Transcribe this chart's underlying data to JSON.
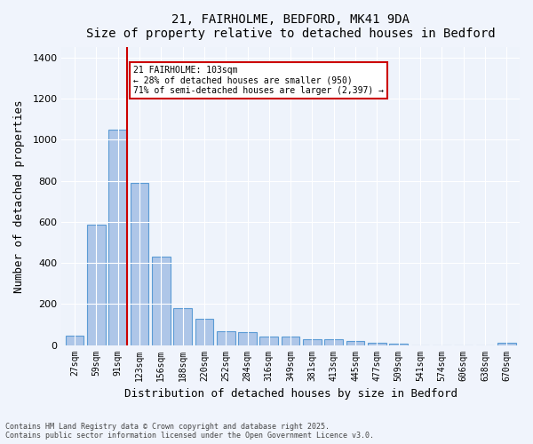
{
  "title": "21, FAIRHOLME, BEDFORD, MK41 9DA",
  "subtitle": "Size of property relative to detached houses in Bedford",
  "xlabel": "Distribution of detached houses by size in Bedford",
  "ylabel": "Number of detached properties",
  "categories": [
    "27sqm",
    "59sqm",
    "91sqm",
    "123sqm",
    "156sqm",
    "188sqm",
    "220sqm",
    "252sqm",
    "284sqm",
    "316sqm",
    "349sqm",
    "381sqm",
    "413sqm",
    "445sqm",
    "477sqm",
    "509sqm",
    "541sqm",
    "574sqm",
    "606sqm",
    "638sqm",
    "670sqm"
  ],
  "values": [
    45,
    585,
    1050,
    790,
    430,
    178,
    128,
    68,
    65,
    43,
    43,
    28,
    27,
    20,
    12,
    8,
    0,
    0,
    0,
    0,
    10
  ],
  "bar_color": "#aec6e8",
  "bar_edge_color": "#5b9bd5",
  "red_line_index": 2,
  "red_line_label": "21 FAIRHOLME: 103sqm",
  "annotation_line1": "21 FAIRHOLME: 103sqm",
  "annotation_line2": "← 28% of detached houses are smaller (950)",
  "annotation_line3": "71% of semi-detached houses are larger (2,397) →",
  "annotation_box_color": "#ffffff",
  "annotation_box_edge": "#cc0000",
  "red_line_color": "#cc0000",
  "ylim": [
    0,
    1450
  ],
  "yticks": [
    0,
    200,
    400,
    600,
    800,
    1000,
    1200,
    1400
  ],
  "background_color": "#eef3fb",
  "footer_line1": "Contains HM Land Registry data © Crown copyright and database right 2025.",
  "footer_line2": "Contains public sector information licensed under the Open Government Licence v3.0."
}
